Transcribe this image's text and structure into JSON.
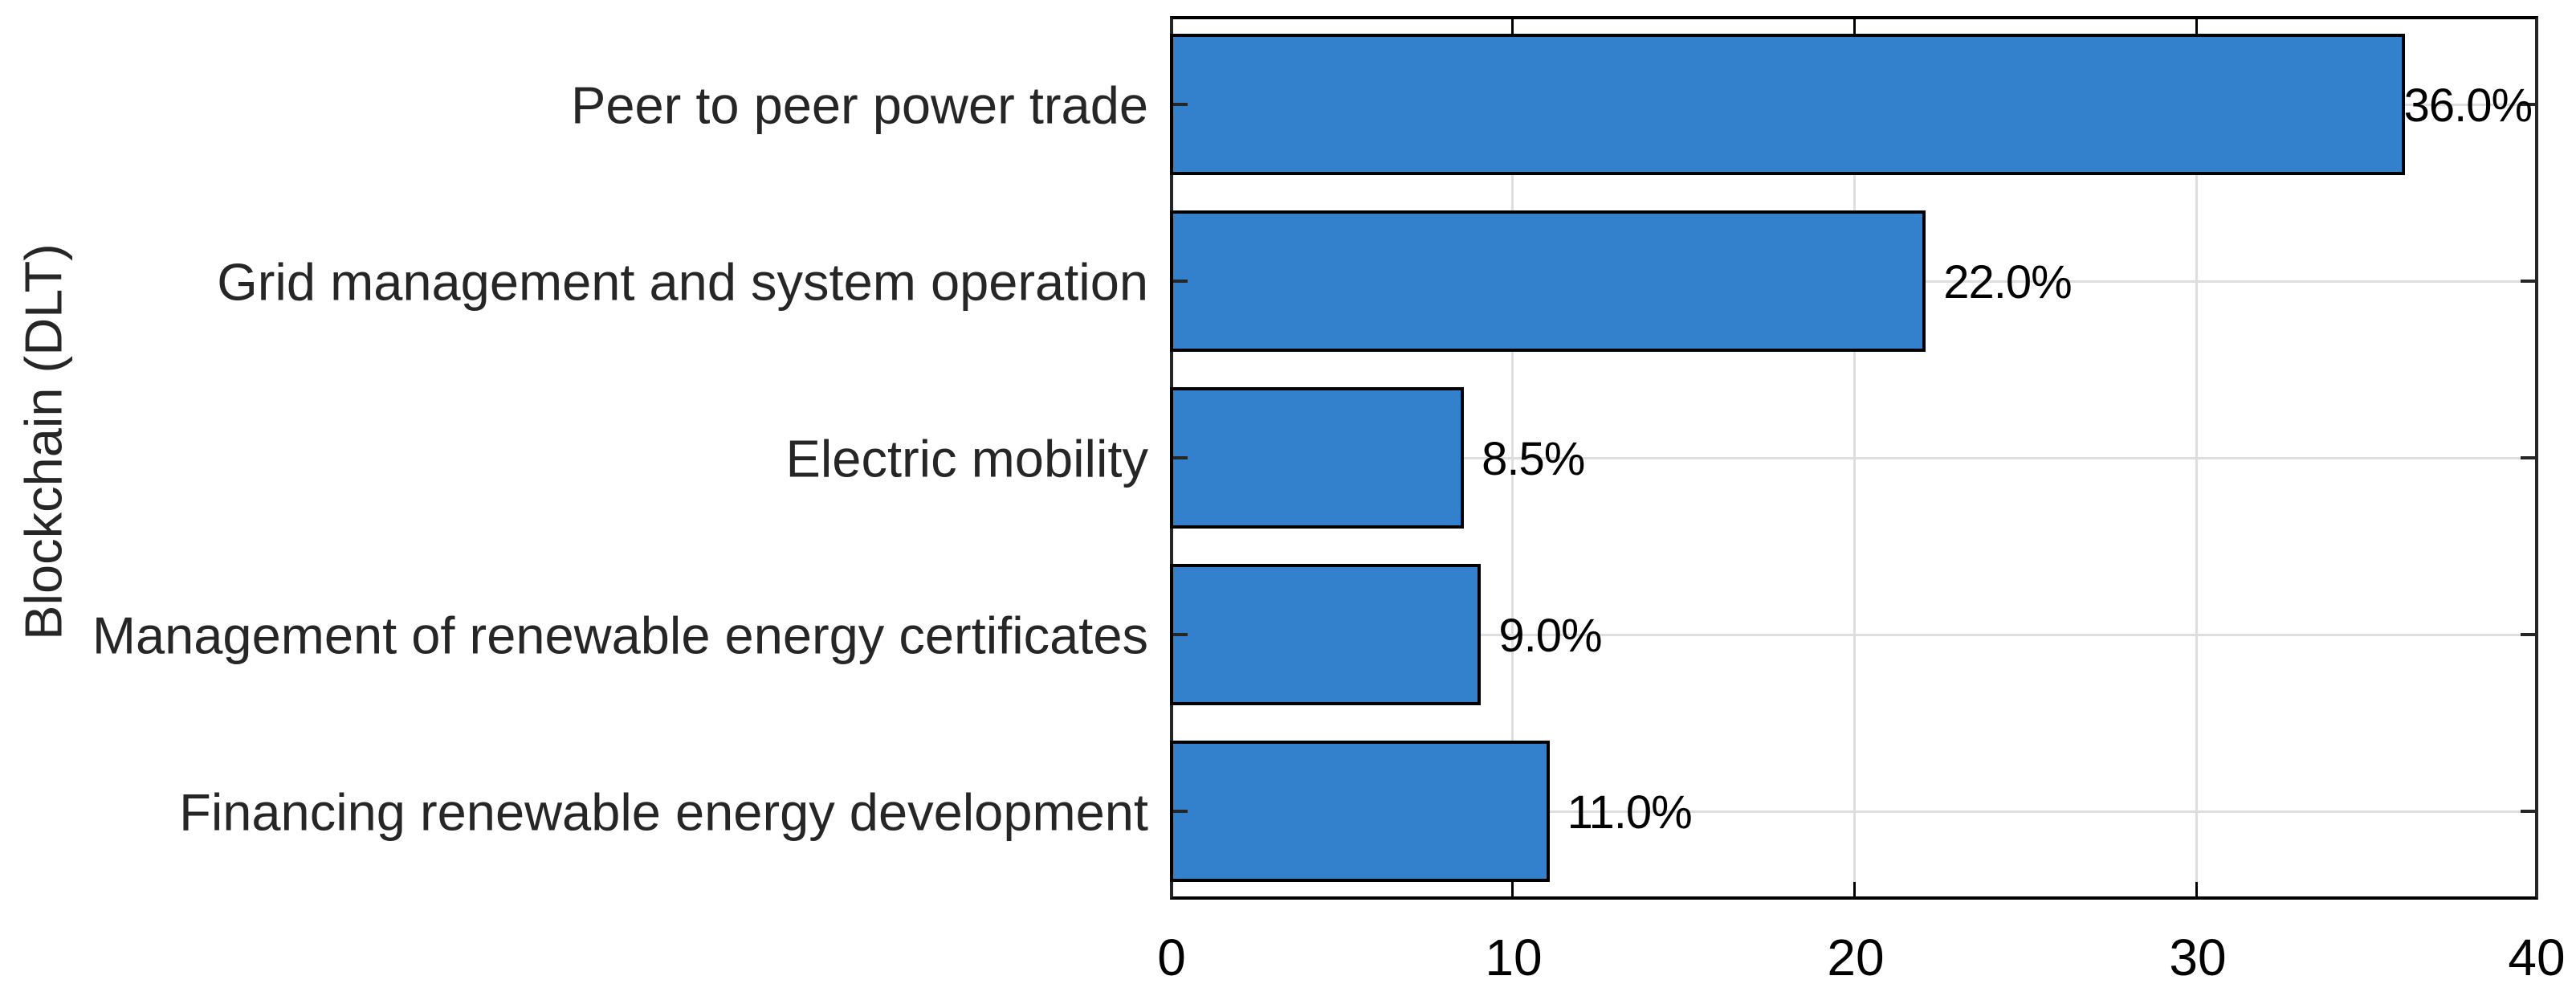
{
  "chart_data": {
    "type": "bar",
    "orientation": "horizontal",
    "title": "",
    "xlabel": "",
    "ylabel": "Blockchain (DLT)",
    "categories": [
      "Peer to peer power trade",
      "Grid management and system operation",
      "Electric mobility",
      "Management of renewable energy certificates",
      "Financing renewable energy development"
    ],
    "values": [
      36.0,
      22.0,
      8.5,
      9.0,
      11.0
    ],
    "value_labels": [
      "36.0%",
      "22.0%",
      "8.5%",
      "9.0%",
      "11.0%"
    ],
    "xlim": [
      0,
      40
    ],
    "xticks": [
      0,
      10,
      20,
      30,
      40
    ],
    "xtick_labels": [
      "0",
      "10",
      "20",
      "30",
      "40"
    ],
    "grid": true,
    "legend": null,
    "bar_color": "#3380cc",
    "edge_color": "#000000",
    "grid_color": "#dedede"
  }
}
